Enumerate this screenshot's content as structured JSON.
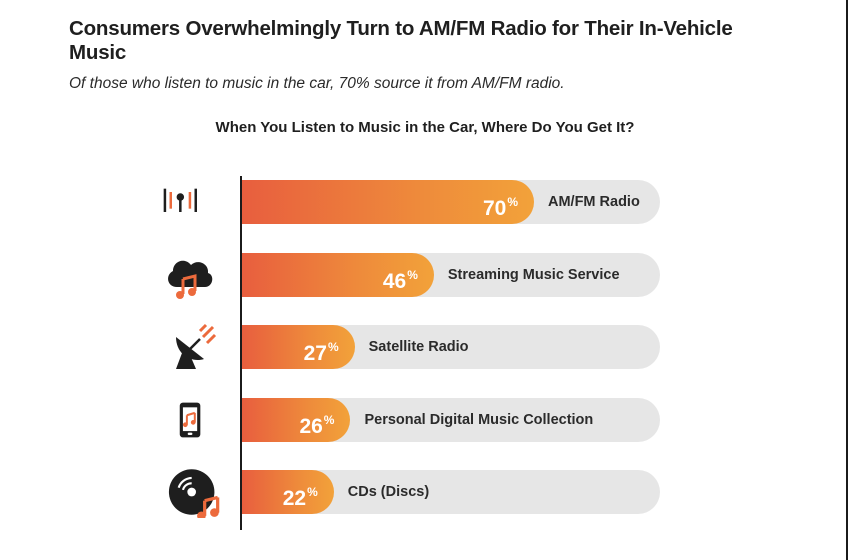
{
  "title": "Consumers Overwhelmingly Turn to AM/FM Radio for Their In-Vehicle Music",
  "subtitle": "Of those who listen to music in the car, 70% source it from AM/FM radio.",
  "colors": {
    "bar_start": "#e85e3e",
    "bar_end": "#f2a23a",
    "track": "#e6e6e6",
    "text": "#2b2b2b",
    "icon_dark": "#1e1e1e",
    "icon_accent": "#ec6a3c"
  },
  "chart_data": {
    "type": "bar",
    "orientation": "horizontal",
    "title": "When You Listen to Music in the Car, Where Do You Get It?",
    "categories": [
      "AM/FM Radio",
      "Streaming Music Service",
      "Satellite Radio",
      "Personal Digital Music Collection",
      "CDs (Discs)"
    ],
    "values": [
      70,
      46,
      27,
      26,
      22
    ],
    "value_suffix": "%",
    "icons": [
      "radio-tower-icon",
      "cloud-music-icon",
      "satellite-dish-icon",
      "phone-music-icon",
      "cd-music-icon"
    ],
    "xlim": [
      0,
      100
    ],
    "grid": false,
    "legend": "none"
  }
}
